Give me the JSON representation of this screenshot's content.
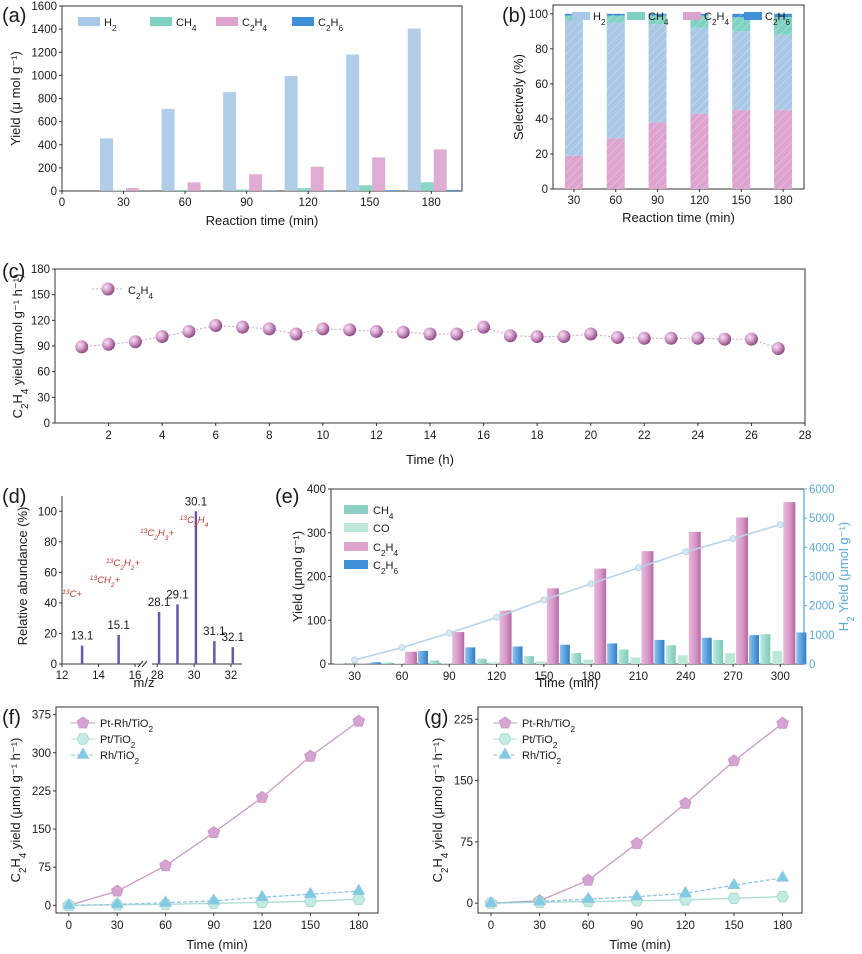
{
  "colors": {
    "h2": "#a9c8e6",
    "ch4": "#7fd1c2",
    "c2h4": "#dca3cf",
    "c2h6": "#3f8fd6",
    "c2h4_dark": "#b66aa8",
    "co": "#bde8d8",
    "ch4_e": "#8fd0c4",
    "h2_line": "#b8d4ea",
    "ms_bar": "#6a55a8",
    "ms_red": "#c0392b",
    "pt_rh": "#d6a3d3",
    "pt": "#c3ebe3",
    "rh": "#7fcbe6",
    "axis_right": "#5da9d6"
  },
  "panel_a": {
    "letter": "(a)",
    "chart_data": {
      "type": "bar",
      "categories": [
        "30",
        "60",
        "90",
        "120",
        "150",
        "180"
      ],
      "x_positions": [
        30,
        60,
        90,
        120,
        150,
        180
      ],
      "series": [
        {
          "name": "H2",
          "legend": [
            "H",
            "2",
            ""
          ],
          "values": [
            455,
            710,
            855,
            995,
            1180,
            1405
          ]
        },
        {
          "name": "CH4",
          "legend": [
            "CH",
            "4",
            ""
          ],
          "values": [
            4,
            8,
            12,
            25,
            50,
            75
          ]
        },
        {
          "name": "C2H4",
          "legend": [
            "C",
            "2",
            "H",
            "4",
            ""
          ],
          "values": [
            25,
            75,
            145,
            210,
            290,
            360
          ]
        },
        {
          "name": "C2H6",
          "legend": [
            "C",
            "2",
            "H",
            "6",
            ""
          ],
          "values": [
            1,
            2,
            3,
            5,
            7,
            9
          ]
        }
      ],
      "xlabel": "Reaction time (min)",
      "ylabel": "Yield (μ mol g⁻¹)",
      "xlim": [
        0,
        195
      ],
      "ylim": [
        0,
        1600
      ],
      "xticks": [
        "0",
        "30",
        "60",
        "90",
        "120",
        "150",
        "180"
      ],
      "yticks": [
        "0",
        "200",
        "400",
        "600",
        "800",
        "1000",
        "1200",
        "1400",
        "1600"
      ]
    }
  },
  "panel_b": {
    "letter": "(b)",
    "chart_data": {
      "type": "bar",
      "stacked": true,
      "categories": [
        "30",
        "60",
        "90",
        "120",
        "150",
        "180"
      ],
      "series": [
        {
          "name": "C2H4",
          "legend": [
            "C",
            "2",
            "H",
            "4",
            ""
          ],
          "values": [
            19,
            29,
            38,
            43,
            45,
            45
          ]
        },
        {
          "name": "H2",
          "legend": [
            "H",
            "2",
            ""
          ],
          "values": [
            77,
            66,
            56,
            49,
            45,
            43
          ]
        },
        {
          "name": "CH4",
          "legend": [
            "CH",
            "4",
            ""
          ],
          "values": [
            3,
            4,
            5,
            7,
            8,
            10
          ]
        },
        {
          "name": "C2H6",
          "legend": [
            "C",
            "2",
            "H",
            "6",
            ""
          ],
          "values": [
            1,
            1,
            1,
            1,
            2,
            2
          ]
        }
      ],
      "xlabel": "Reaction time (min)",
      "ylabel": "Selectively (%)",
      "ylim": [
        0,
        105
      ],
      "yticks": [
        "0",
        "20",
        "40",
        "60",
        "80",
        "100"
      ]
    }
  },
  "panel_c": {
    "letter": "(c)",
    "chart_data": {
      "type": "scatter",
      "series_name": "C2H4",
      "legend": [
        "C",
        "2",
        "H",
        "4",
        ""
      ],
      "x": [
        1,
        2,
        3,
        4,
        5,
        6,
        7,
        8,
        9,
        10,
        11,
        12,
        13,
        14,
        15,
        16,
        17,
        18,
        19,
        20,
        21,
        22,
        23,
        24,
        25,
        26,
        27
      ],
      "y": [
        89,
        92,
        95,
        101,
        107,
        114,
        112,
        110,
        104,
        110,
        109,
        107,
        106,
        104,
        104,
        112,
        102,
        101,
        101,
        104,
        100,
        99,
        99,
        99,
        98,
        98,
        87
      ],
      "xlabel": "Time (h)",
      "ylabel_parts": [
        "C",
        "2",
        "H",
        "4",
        " yield (μmol g⁻¹ h⁻¹)"
      ],
      "xlim": [
        0,
        28
      ],
      "ylim": [
        0,
        180
      ],
      "xticks": [
        "2",
        "4",
        "6",
        "8",
        "10",
        "12",
        "14",
        "16",
        "18",
        "20",
        "22",
        "24",
        "26",
        "28"
      ],
      "yticks": [
        "0",
        "30",
        "60",
        "90",
        "120",
        "150",
        "180"
      ]
    }
  },
  "panel_d": {
    "letter": "(d)",
    "chart_data": {
      "type": "bar",
      "subtype": "mass-spectrum",
      "x": [
        13.1,
        15.1,
        28.1,
        29.1,
        30.1,
        31.1,
        32.1
      ],
      "values": [
        12,
        19,
        34,
        39,
        100,
        15,
        11
      ],
      "labels": [
        "13.1",
        "15.1",
        "28.1",
        "29.1",
        "30.1",
        "31.1",
        "32.1"
      ],
      "annotations": [
        {
          "sup": "13",
          "text": "C+"
        },
        {
          "sup": "13",
          "text": "CH",
          "sub": "2",
          "tail": "+"
        },
        {
          "sup": "13",
          "text": "C",
          "sub": "2",
          "mid": "H",
          "sub2": "2",
          "tail": "+"
        },
        {
          "sup": "13",
          "text": "C",
          "sub": "2",
          "mid": "H",
          "sub2": "3",
          "tail": "+"
        },
        {
          "sup": "13",
          "text": "C",
          "sub": "2",
          "mid": "H",
          "sub2": "4",
          "tail": ""
        }
      ],
      "xlabel": "m/z",
      "ylabel": "Relative abundance (%)",
      "ylim": [
        0,
        110
      ],
      "xticks": [
        "12",
        "14",
        "16",
        "28",
        "30",
        "32"
      ],
      "yticks": [
        "0",
        "20",
        "40",
        "60",
        "80",
        "100"
      ]
    }
  },
  "panel_e": {
    "letter": "(e)",
    "chart_data": {
      "type": "bar",
      "categories": [
        "30",
        "60",
        "90",
        "120",
        "150",
        "180",
        "210",
        "240",
        "270",
        "300"
      ],
      "series": [
        {
          "name": "CH4",
          "legend": [
            "CH",
            "4",
            ""
          ],
          "values": [
            1,
            3,
            8,
            12,
            18,
            25,
            33,
            43,
            55,
            68
          ]
        },
        {
          "name": "CO",
          "legend": [
            "CO"
          ],
          "values": [
            0.5,
            1,
            2,
            4,
            6,
            10,
            15,
            20,
            25,
            30
          ]
        },
        {
          "name": "C2H4",
          "legend": [
            "C",
            "2",
            "H",
            "4",
            ""
          ],
          "values": [
            1,
            28,
            73,
            122,
            173,
            218,
            258,
            302,
            335,
            370
          ]
        },
        {
          "name": "C2H6",
          "legend": [
            "C",
            "2",
            "H",
            "6",
            ""
          ],
          "values": [
            4,
            30,
            38,
            40,
            44,
            47,
            55,
            60,
            66,
            72
          ]
        }
      ],
      "h2_line": {
        "name": "H2",
        "values": [
          140,
          560,
          1060,
          1600,
          2200,
          2750,
          3300,
          3850,
          4300,
          4780
        ]
      },
      "xlabel": "Time (min)",
      "ylabel_left": "Yield (μmol g⁻¹)",
      "ylabel_right_parts": [
        "H",
        "2",
        " Yield (μmol g⁻¹)"
      ],
      "ylim_left": [
        0,
        400
      ],
      "ylim_right": [
        0,
        6000
      ],
      "yticks_left": [
        "0",
        "100",
        "200",
        "300",
        "400"
      ],
      "yticks_right": [
        "0",
        "1000",
        "2000",
        "3000",
        "4000",
        "5000",
        "6000"
      ]
    }
  },
  "panel_f": {
    "letter": "(f)",
    "chart_data": {
      "type": "line",
      "x": [
        0,
        30,
        60,
        90,
        120,
        150,
        180
      ],
      "series": [
        {
          "name": "Pt-Rh/TiO2",
          "legend": [
            "Pt-Rh/TiO",
            "2",
            ""
          ],
          "values": [
            0,
            28,
            78,
            143,
            212,
            293,
            362
          ]
        },
        {
          "name": "Pt/TiO2",
          "legend": [
            "Pt/TiO",
            "2",
            ""
          ],
          "values": [
            0,
            1,
            2,
            4,
            6,
            8,
            12
          ]
        },
        {
          "name": "Rh/TiO2",
          "legend": [
            "Rh/TiO",
            "2",
            ""
          ],
          "values": [
            0,
            2,
            5,
            9,
            16,
            22,
            28
          ]
        }
      ],
      "xlabel": "Time (min)",
      "ylabel_parts": [
        "C",
        "2",
        "H",
        "4",
        " yield (μmol g⁻¹ h⁻¹)"
      ],
      "xlim": [
        -8,
        192
      ],
      "ylim": [
        -15,
        390
      ],
      "xticks": [
        "0",
        "30",
        "60",
        "90",
        "120",
        "150",
        "180"
      ],
      "yticks": [
        "0",
        "75",
        "150",
        "225",
        "300",
        "375"
      ]
    }
  },
  "panel_g": {
    "letter": "(g)",
    "chart_data": {
      "type": "line",
      "x": [
        0,
        30,
        60,
        90,
        120,
        150,
        180
      ],
      "series": [
        {
          "name": "Pt-Rh/TiO2",
          "legend": [
            "Pt-Rh/TiO",
            "2",
            ""
          ],
          "values": [
            0,
            3,
            28,
            73,
            122,
            174,
            220
          ]
        },
        {
          "name": "Pt/TiO2",
          "legend": [
            "Pt/TiO",
            "2",
            ""
          ],
          "values": [
            0,
            1,
            2,
            3,
            4,
            6,
            8
          ]
        },
        {
          "name": "Rh/TiO2",
          "legend": [
            "Rh/TiO",
            "2",
            ""
          ],
          "values": [
            0,
            2,
            5,
            8,
            12,
            22,
            31
          ]
        }
      ],
      "xlabel": "Time (min)",
      "ylabel_parts": [
        "C",
        "2",
        "H",
        "4",
        " yield (μmol g⁻¹ h⁻¹)"
      ],
      "xlim": [
        -8,
        192
      ],
      "ylim": [
        -12,
        240
      ],
      "xticks": [
        "0",
        "30",
        "60",
        "90",
        "120",
        "150",
        "180"
      ],
      "yticks": [
        "0",
        "75",
        "150",
        "225"
      ]
    }
  }
}
